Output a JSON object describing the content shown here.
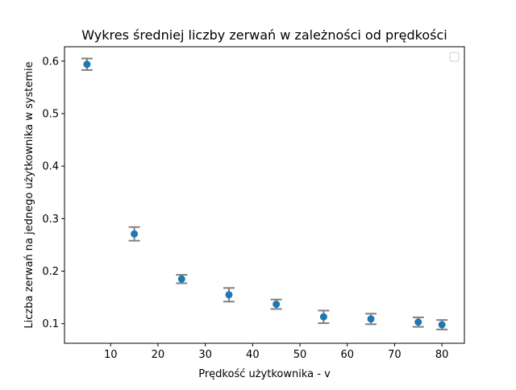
{
  "chart_data": {
    "type": "scatter",
    "title": "Wykres średniej liczby zerwań w zależności od prędkości",
    "xlabel": "Prędkość użytkownika - v",
    "ylabel": "Liczba zerwań na jednego użytkownika w systemie",
    "xlim": [
      0.25,
      84.75
    ],
    "ylim": [
      0.0627,
      0.6274
    ],
    "xticks": [
      10,
      20,
      30,
      40,
      50,
      60,
      70,
      80
    ],
    "yticks": [
      0.1,
      0.2,
      0.3,
      0.4,
      0.5,
      0.6
    ],
    "ytick_labels": [
      "0.1",
      "0.2",
      "0.3",
      "0.4",
      "0.5",
      "0.6"
    ],
    "grid": false,
    "legend": {
      "placement": "top-right",
      "entries": []
    },
    "marker_color": "#1f77b4",
    "errorbar_color": "#808080",
    "points": [
      {
        "x": 5,
        "y": 0.594,
        "err": 0.011
      },
      {
        "x": 15,
        "y": 0.271,
        "err": 0.013
      },
      {
        "x": 25,
        "y": 0.185,
        "err": 0.008
      },
      {
        "x": 35,
        "y": 0.155,
        "err": 0.013
      },
      {
        "x": 45,
        "y": 0.137,
        "err": 0.009
      },
      {
        "x": 55,
        "y": 0.113,
        "err": 0.012
      },
      {
        "x": 65,
        "y": 0.109,
        "err": 0.01
      },
      {
        "x": 75,
        "y": 0.103,
        "err": 0.009
      },
      {
        "x": 80,
        "y": 0.098,
        "err": 0.009
      }
    ]
  }
}
